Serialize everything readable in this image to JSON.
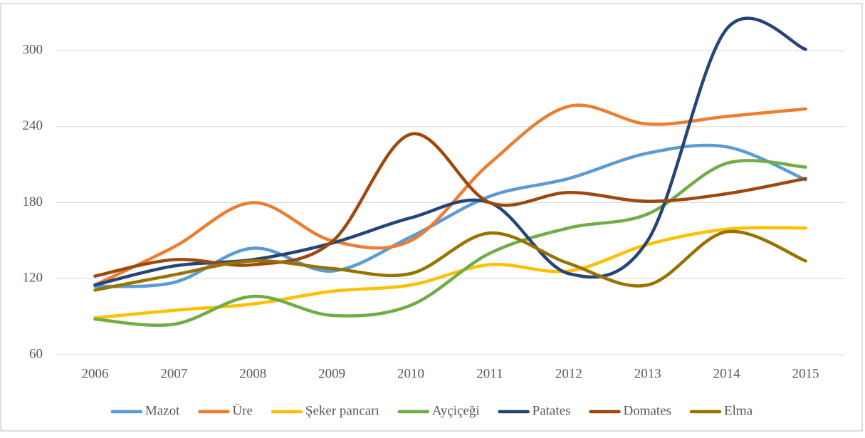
{
  "chart_data": {
    "type": "line",
    "categories": [
      "2006",
      "2007",
      "2008",
      "2009",
      "2010",
      "2011",
      "2012",
      "2013",
      "2014",
      "2015"
    ],
    "series": [
      {
        "name": "Mazot",
        "color": "#5b9bd5",
        "values": [
          114,
          117,
          144,
          126,
          153,
          185,
          199,
          219,
          224,
          198
        ]
      },
      {
        "name": "Üre",
        "color": "#ed7d31",
        "values": [
          115,
          145,
          180,
          150,
          150,
          211,
          256,
          242,
          248,
          254
        ]
      },
      {
        "name": "Şeker pancarı",
        "color": "#ffc000",
        "values": [
          89,
          95,
          100,
          110,
          115,
          131,
          126,
          147,
          159,
          160
        ]
      },
      {
        "name": "Ayçiçeği",
        "color": "#70ad47",
        "values": [
          88,
          84,
          106,
          91,
          99,
          140,
          160,
          171,
          211,
          208
        ]
      },
      {
        "name": "Patates",
        "color": "#264478",
        "values": [
          115,
          130,
          135,
          148,
          168,
          180,
          124,
          150,
          317,
          301
        ]
      },
      {
        "name": "Domates",
        "color": "#9e480e",
        "values": [
          122,
          135,
          131,
          149,
          234,
          180,
          188,
          181,
          187,
          199
        ]
      },
      {
        "name": "Elma",
        "color": "#997300",
        "values": [
          111,
          123,
          134,
          128,
          124,
          156,
          132,
          115,
          157,
          134
        ]
      }
    ],
    "ylim": [
      60,
      320
    ],
    "yticks": [
      60,
      120,
      180,
      240,
      300
    ],
    "grid": true,
    "legend": "bottom"
  }
}
